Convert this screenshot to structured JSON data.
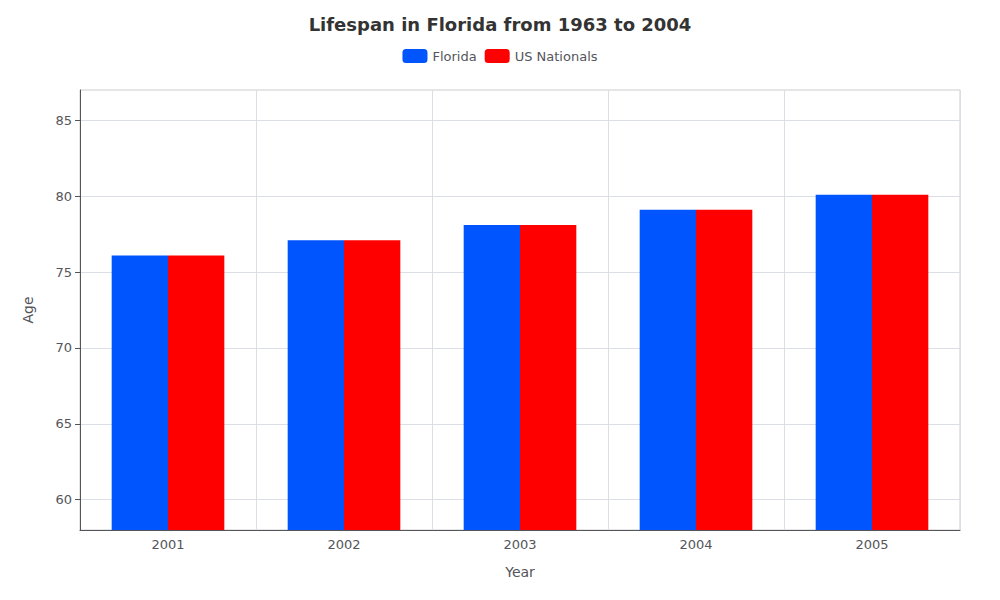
{
  "chart_data": {
    "type": "bar",
    "title": "Lifespan in Florida from 1963 to 2004",
    "xlabel": "Year",
    "ylabel": "Age",
    "categories": [
      "2001",
      "2002",
      "2003",
      "2004",
      "2005"
    ],
    "series": [
      {
        "name": "Florida",
        "color": "#0055ff",
        "values": [
          76.1,
          77.1,
          78.1,
          79.1,
          80.1
        ]
      },
      {
        "name": "US Nationals",
        "color": "#ff0000",
        "values": [
          76.1,
          77.1,
          78.1,
          79.1,
          80.1
        ]
      }
    ],
    "ylim": [
      58,
      87
    ],
    "yticks": [
      60,
      65,
      70,
      75,
      80,
      85
    ],
    "grid": true,
    "legend": "top"
  }
}
